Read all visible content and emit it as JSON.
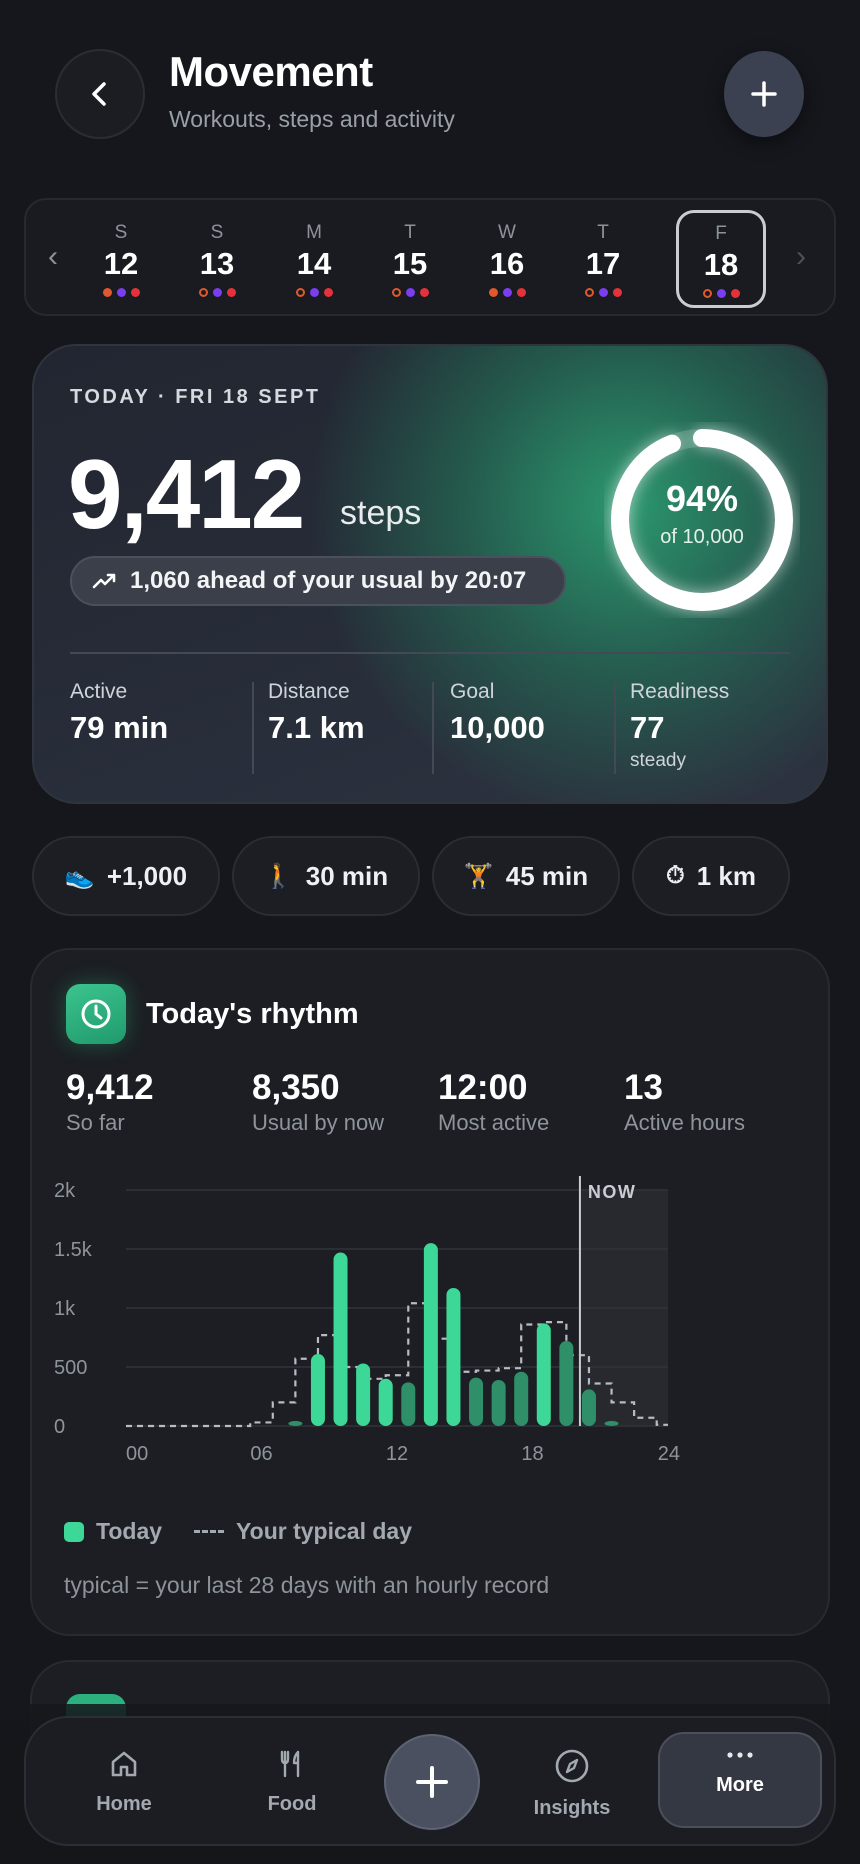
{
  "header": {
    "title": "Movement",
    "subtitle": "Workouts, steps and activity"
  },
  "week": {
    "days": [
      {
        "dow": "S",
        "num": "12"
      },
      {
        "dow": "S",
        "num": "13"
      },
      {
        "dow": "M",
        "num": "14"
      },
      {
        "dow": "T",
        "num": "15"
      },
      {
        "dow": "W",
        "num": "16"
      },
      {
        "dow": "T",
        "num": "17"
      },
      {
        "dow": "F",
        "num": "18"
      }
    ],
    "selected_index": 6
  },
  "today": {
    "date": "TODAY · FRI 18 SEPT",
    "steps": "9,412",
    "steps_unit": "steps",
    "ahead_text": "1,060 ahead of your usual by 20:07",
    "goal_percent": "94%",
    "goal_fraction": 0.94,
    "goal_of": "of 10,000",
    "stats": [
      {
        "label": "Active",
        "value": "79 min"
      },
      {
        "label": "Distance",
        "value": "7.1 km"
      },
      {
        "label": "Goal",
        "value": "10,000"
      },
      {
        "label": "Readiness",
        "value": "77",
        "sub": "steady"
      }
    ]
  },
  "chips": [
    {
      "icon": "shoe-icon",
      "label": "+1,000"
    },
    {
      "icon": "walk-icon",
      "label": "30 min"
    },
    {
      "icon": "weightlifting-icon",
      "label": "45 min"
    },
    {
      "icon": "stopwatch-icon",
      "label": "1 km"
    }
  ],
  "rhythm": {
    "title": "Today's rhythm",
    "kpis": [
      {
        "value": "9,412",
        "label": "So far"
      },
      {
        "value": "8,350",
        "label": "Usual by now"
      },
      {
        "value": "12:00",
        "label": "Most active"
      },
      {
        "value": "13",
        "label": "Active hours"
      }
    ],
    "legend_today": "Today",
    "legend_typical": "Your typical day",
    "footnote": "typical = your last 28 days with an hourly record"
  },
  "chart_data": {
    "type": "bar",
    "y_tick_labels": [
      "0",
      "500",
      "1k",
      "1.5k",
      "2k"
    ],
    "x_tick_labels": [
      "00",
      "06",
      "12",
      "18",
      "24"
    ],
    "now_label": "NOW",
    "ylim": [
      0,
      2000
    ],
    "xlim": [
      0,
      24
    ],
    "now_hour": 20.1,
    "series": [
      {
        "name": "Today",
        "hours": [
          7,
          8,
          9,
          10,
          11,
          12,
          13,
          14,
          15,
          16,
          17,
          18,
          19,
          20,
          21
        ],
        "values": [
          40,
          610,
          1470,
          530,
          400,
          370,
          1550,
          1170,
          410,
          390,
          460,
          870,
          720,
          310,
          40
        ],
        "highlight": [
          false,
          true,
          true,
          true,
          true,
          false,
          true,
          true,
          false,
          false,
          false,
          true,
          false,
          false,
          false
        ]
      },
      {
        "name": "Your typical day",
        "style": "dashed",
        "hours": [
          0,
          1,
          2,
          3,
          4,
          5,
          6,
          7,
          8,
          9,
          10,
          11,
          12,
          13,
          14,
          15,
          16,
          17,
          18,
          19,
          20,
          21,
          22,
          23,
          24
        ],
        "values": [
          0,
          0,
          0,
          0,
          0,
          0,
          30,
          200,
          570,
          770,
          500,
          400,
          430,
          1040,
          740,
          460,
          470,
          490,
          860,
          880,
          600,
          360,
          200,
          70,
          10
        ]
      }
    ],
    "colors": {
      "today_bright": "#3dd897",
      "today_dim": "#2f8f68",
      "typical": "#b7bcc4"
    }
  },
  "nav": {
    "items": [
      {
        "icon": "home-icon",
        "label": "Home"
      },
      {
        "icon": "fork-knife-icon",
        "label": "Food"
      },
      {
        "icon": "compass-icon",
        "label": "Insights"
      },
      {
        "icon": "more-dots-icon",
        "label": "More"
      }
    ],
    "active": "More"
  }
}
